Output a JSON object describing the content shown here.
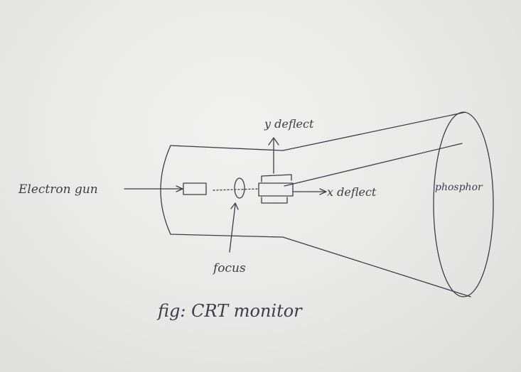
{
  "diagram": {
    "labels": {
      "electron_gun": "Electron gun",
      "y_deflect": "y deflect",
      "x_deflect": "x deflect",
      "focus": "focus",
      "phosphor": "phosphor",
      "caption": "fig: CRT monitor"
    },
    "colors": {
      "paper": "#ececea",
      "ink": "#3d3d4a"
    }
  }
}
